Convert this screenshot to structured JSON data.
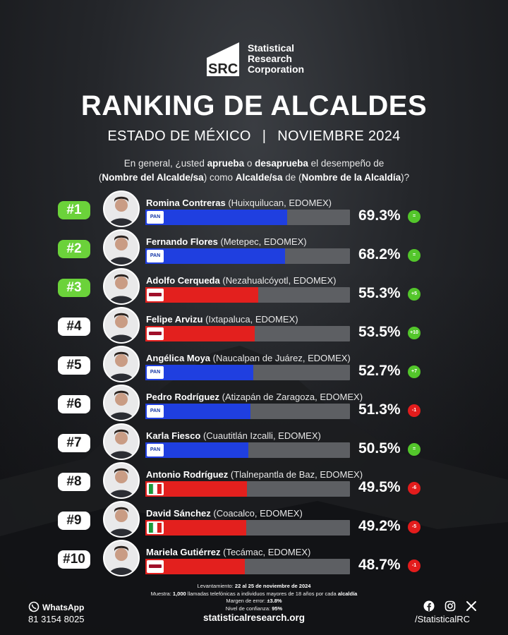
{
  "brand": {
    "abbr": "SRC",
    "line1": "Statistical",
    "line2": "Research",
    "line3": "Corporation"
  },
  "title": "RANKING DE ALCALDES",
  "subtitle_left": "ESTADO DE MÉXICO",
  "subtitle_sep": "|",
  "subtitle_right": "NOVIEMBRE 2024",
  "question": {
    "p1": "En general, ¿usted ",
    "b1": "aprueba",
    "p2": " o ",
    "b2": "desaprueba",
    "p3": " el desempeño de",
    "p4": "(",
    "b3": "Nombre del Alcalde/sa",
    "p5": ") como ",
    "b4": "Alcalde/sa",
    "p6": " de (",
    "b5": "Nombre de la Alcaldía",
    "p7": ")?"
  },
  "colors": {
    "pan": "#1f3fe0",
    "morena": "#e3201e",
    "pri": "#e3201e",
    "track": "#5d5f63",
    "top_rank": "#6bd23a"
  },
  "chart_data": {
    "type": "bar",
    "orientation": "horizontal",
    "xlim": [
      0,
      100
    ],
    "categories": [
      "Romina Contreras",
      "Fernando Flores",
      "Adolfo Cerqueda",
      "Felipe Arvizu",
      "Angélica Moya",
      "Pedro Rodríguez",
      "Karla Fiesco",
      "Antonio Rodríguez",
      "David Sánchez",
      "Mariela Gutiérrez"
    ],
    "rows": [
      {
        "rank": "#1",
        "name": "Romina Contreras",
        "location": "(Huixquilucan, EDOMEX)",
        "party": "PAN",
        "value": 69.3,
        "label": "69.3%",
        "change": "=",
        "change_dir": "up"
      },
      {
        "rank": "#2",
        "name": "Fernando Flores",
        "location": "(Metepec, EDOMEX)",
        "party": "PAN",
        "value": 68.2,
        "label": "68.2%",
        "change": "=",
        "change_dir": "up"
      },
      {
        "rank": "#3",
        "name": "Adolfo Cerqueda",
        "location": "(Nezahualcóyotl, EDOMEX)",
        "party": "MORENA",
        "value": 55.3,
        "label": "55.3%",
        "change": "+5",
        "change_dir": "up"
      },
      {
        "rank": "#4",
        "name": "Felipe Arvizu",
        "location": "(Ixtapaluca, EDOMEX)",
        "party": "MORENA",
        "value": 53.5,
        "label": "53.5%",
        "change": "+10",
        "change_dir": "up"
      },
      {
        "rank": "#5",
        "name": "Angélica Moya",
        "location": "(Naucalpan de Juárez, EDOMEX)",
        "party": "PAN",
        "value": 52.7,
        "label": "52.7%",
        "change": "+7",
        "change_dir": "up"
      },
      {
        "rank": "#6",
        "name": "Pedro Rodríguez",
        "location": "(Atizapán de Zaragoza, EDOMEX)",
        "party": "PAN",
        "value": 51.3,
        "label": "51.3%",
        "change": "-1",
        "change_dir": "down"
      },
      {
        "rank": "#7",
        "name": "Karla Fiesco",
        "location": "(Cuautitlán Izcalli, EDOMEX)",
        "party": "PAN",
        "value": 50.5,
        "label": "50.5%",
        "change": "=",
        "change_dir": "up"
      },
      {
        "rank": "#8",
        "name": "Antonio Rodríguez",
        "location": "(Tlalnepantla de Baz, EDOMEX)",
        "party": "PRI",
        "value": 49.5,
        "label": "49.5%",
        "change": "-6",
        "change_dir": "down"
      },
      {
        "rank": "#9",
        "name": "David Sánchez",
        "location": "(Coacalco, EDOMEX)",
        "party": "PRI",
        "value": 49.2,
        "label": "49.2%",
        "change": "-5",
        "change_dir": "down"
      },
      {
        "rank": "#10",
        "name": "Mariela Gutiérrez",
        "location": "(Tecámac, EDOMEX)",
        "party": "MORENA",
        "value": 48.7,
        "label": "48.7%",
        "change": "-1",
        "change_dir": "down"
      }
    ]
  },
  "footer": {
    "n1a": "Levantamiento: ",
    "n1b": "22 al 25 de noviembre de 2024",
    "n2a": "Muestra: ",
    "n2b": "1,000",
    "n2c": " llamadas telefónicas a individuos mayores de 18 años por cada ",
    "n2d": "alcaldía",
    "n3a": "Margen de error: ",
    "n3b": "±3.8%",
    "n4a": "Nivel de confianza: ",
    "n4b": "95%",
    "whatsapp_label": "WhatsApp",
    "whatsapp_phone": "81 3154 8025",
    "site": "statisticalresearch.org",
    "handle": "/StatisticalRC"
  },
  "icons": [
    "whatsapp-icon",
    "facebook-icon",
    "instagram-icon",
    "x-icon"
  ]
}
